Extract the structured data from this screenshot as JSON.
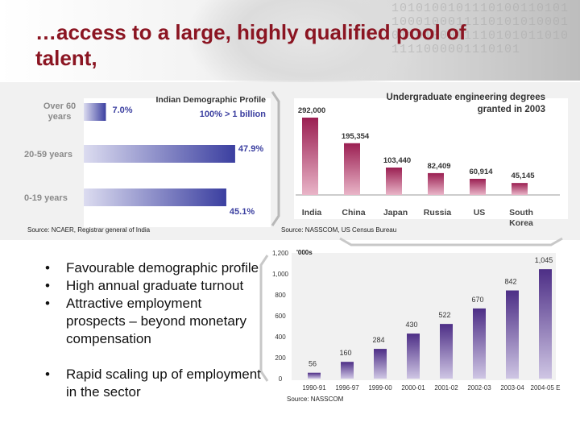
{
  "slide": {
    "title": "…access to a large, highly qualified pool of talent,",
    "bullets": [
      "Favourable demographic profile",
      "High annual graduate turnout",
      "Attractive employment prospects – beyond monetary compensation",
      "Rapid scaling up of employment in the sector"
    ]
  },
  "chart_data": [
    {
      "type": "bar",
      "orientation": "horizontal",
      "title": "Indian Demographic Profile",
      "annotation": "100% > 1 billion",
      "categories": [
        "Over 60 years",
        "20-59 years",
        "0-19 years"
      ],
      "labels": [
        "7.0%",
        "47.9%",
        "45.1%"
      ],
      "values": [
        7.0,
        47.9,
        45.1
      ],
      "source": "Source: NCAER, Registrar general of India",
      "colors": {
        "bar_light": "#dcdcf0",
        "bar_dark": "#3b3fa0"
      }
    },
    {
      "type": "bar",
      "title": "Undergraduate engineering degrees granted in 2003",
      "categories": [
        "India",
        "China",
        "Japan",
        "Russia",
        "US",
        "South Korea"
      ],
      "labels": [
        "292,000",
        "195,354",
        "103,440",
        "82,409",
        "60,914",
        "45,145"
      ],
      "values": [
        292000,
        195354,
        103440,
        82409,
        60914,
        45145
      ],
      "source": "Source: NASSCOM, US Census Bureau",
      "colors": {
        "bar_light": "#e9b5c8",
        "bar_dark": "#9b1f52"
      }
    },
    {
      "type": "bar",
      "unit_label": "'000s",
      "categories": [
        "1990-91",
        "1996-97",
        "1999-00",
        "2000-01",
        "2001-02",
        "2002-03",
        "2003-04",
        "2004-05 E"
      ],
      "labels": [
        "56",
        "160",
        "284",
        "430",
        "522",
        "670",
        "842",
        "1,045"
      ],
      "values": [
        56,
        160,
        284,
        430,
        522,
        670,
        842,
        1045
      ],
      "ylim": [
        0,
        1200
      ],
      "yticks": [
        "0",
        "200",
        "400",
        "600",
        "800",
        "1,000",
        "1,200"
      ],
      "ytick_values": [
        0,
        200,
        400,
        600,
        800,
        1000,
        1200
      ],
      "grid": false,
      "source": "Source: NASSCOM",
      "colors": {
        "bar_light": "#cfc6e4",
        "bar_dark": "#4d2e86"
      }
    }
  ]
}
